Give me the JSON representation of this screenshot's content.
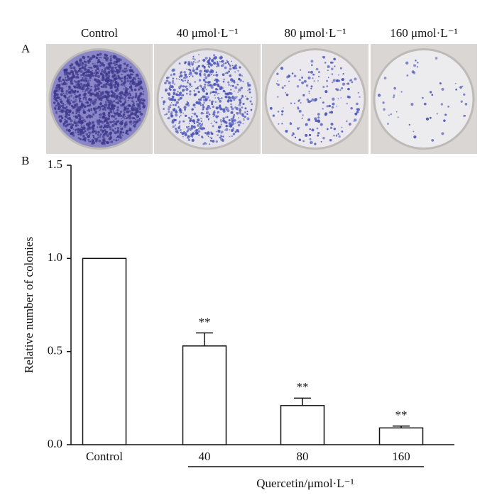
{
  "panel_a": {
    "label": "A",
    "dish_labels": [
      "Control",
      "40 μmol·L⁻¹",
      "80 μmol·L⁻¹",
      "160 μmol·L⁻¹"
    ]
  },
  "chart_data": {
    "type": "bar",
    "panel_label": "B",
    "categories": [
      "Control",
      "40",
      "80",
      "160"
    ],
    "values": [
      1.0,
      0.53,
      0.21,
      0.09
    ],
    "errors": [
      null,
      0.07,
      0.04,
      0.01
    ],
    "annotations": [
      null,
      "**",
      "**",
      "**"
    ],
    "color": "#ffffff",
    "ylim": [
      0,
      1.5
    ],
    "yticks": [
      {
        "value": 0,
        "label": "0.0"
      },
      0.5,
      {
        "value": 1,
        "label": "1.0"
      },
      1.5
    ],
    "ylabel": "Relative number of colonies",
    "xlabel": "Quercetin/μmol·L⁻¹"
  }
}
